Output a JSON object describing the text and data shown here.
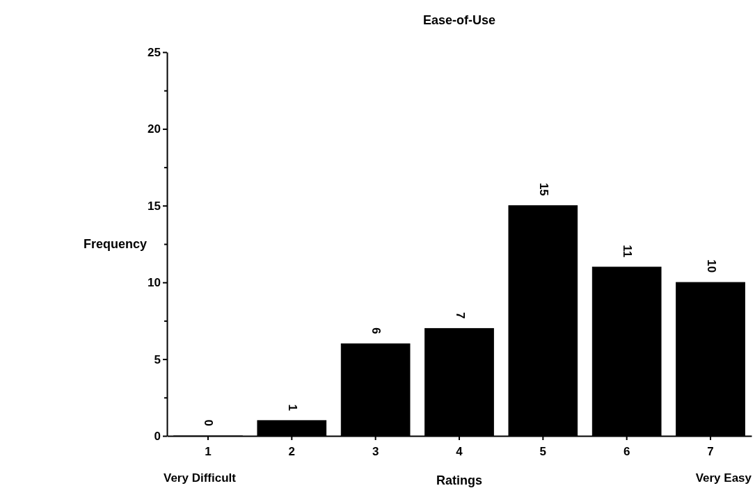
{
  "chart_data": {
    "type": "bar",
    "title": "Ease-of-Use",
    "xlabel": "Ratings",
    "ylabel": "Frequency",
    "categories": [
      "1",
      "2",
      "3",
      "4",
      "5",
      "6",
      "7"
    ],
    "values": [
      0,
      1,
      6,
      7,
      15,
      11,
      10
    ],
    "color": "#000000",
    "data_labels": true,
    "ylim": [
      0,
      25
    ],
    "yticks": [
      0,
      {
        "value": 2.5,
        "label": null
      },
      5,
      {
        "value": 7.5,
        "label": null
      },
      10,
      {
        "value": 12.5,
        "label": null
      },
      15,
      {
        "value": 17.5,
        "label": null
      },
      20,
      {
        "value": 22.5,
        "label": null
      },
      25
    ],
    "annotations": [
      "Very Difficult",
      "Very Easy"
    ],
    "grid": false
  }
}
